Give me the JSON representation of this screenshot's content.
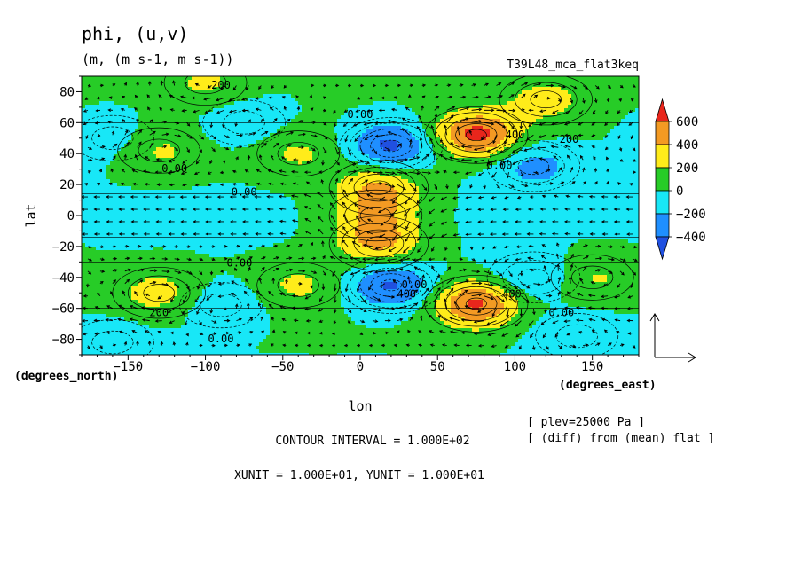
{
  "chart_data": {
    "type": "heatmap",
    "title": "phi, (u,v)",
    "units_line": "(m, (m s-1, m s-1))",
    "experiment": "T39L48_mca_flat3keq",
    "xlabel": "lon",
    "xunit_label": "(degrees_east)",
    "ylabel": "lat",
    "yunit_label": "(degrees_north)",
    "xlim": [
      -180,
      180
    ],
    "ylim": [
      -90,
      90
    ],
    "xticks": [
      -150,
      -100,
      -50,
      0,
      50,
      100,
      150
    ],
    "yticks": [
      80,
      60,
      40,
      20,
      0,
      -20,
      -40,
      -60,
      -80
    ],
    "colorbar": {
      "levels": [
        600,
        400,
        200,
        0,
        -200,
        -400
      ],
      "bands": [
        {
          "min": 600,
          "color": "#e8261c"
        },
        {
          "min": 400,
          "max": 600,
          "color": "#f39a23"
        },
        {
          "min": 200,
          "max": 400,
          "color": "#ffec1a"
        },
        {
          "min": 0,
          "max": 200,
          "color": "#27cc27"
        },
        {
          "min": -200,
          "max": 0,
          "color": "#18e7f7"
        },
        {
          "min": -400,
          "max": -200,
          "color": "#1f8fff"
        },
        {
          "max": -400,
          "color": "#2050e0"
        }
      ]
    },
    "field_features": [
      {
        "lon": 75,
        "lat": 52,
        "value": 650
      },
      {
        "lon": 75,
        "lat": -57,
        "value": 620
      },
      {
        "lon": 12,
        "lat": 18,
        "value": 420
      },
      {
        "lon": 12,
        "lat": -18,
        "value": 430
      },
      {
        "lon": 10,
        "lat": 0,
        "value": 280
      },
      {
        "lon": 20,
        "lat": 45,
        "value": -480
      },
      {
        "lon": 20,
        "lat": -45,
        "value": -460
      },
      {
        "lon": -130,
        "lat": -50,
        "value": 280
      },
      {
        "lon": -130,
        "lat": 42,
        "value": 240
      },
      {
        "lon": -40,
        "lat": 40,
        "value": 230
      },
      {
        "lon": -40,
        "lat": -45,
        "value": 230
      },
      {
        "lon": 150,
        "lat": -40,
        "value": 230
      },
      {
        "lon": -75,
        "lat": 60,
        "value": -180
      },
      {
        "lon": -160,
        "lat": 50,
        "value": -160
      },
      {
        "lon": 112,
        "lat": 32,
        "value": -280
      },
      {
        "lon": 112,
        "lat": -40,
        "value": -250
      },
      {
        "lon": -90,
        "lat": -58,
        "value": -200
      },
      {
        "lon": 140,
        "lat": -78,
        "value": -190
      },
      {
        "lon": -160,
        "lat": -82,
        "value": -160
      },
      {
        "lon": 120,
        "lat": 75,
        "value": 260
      },
      {
        "lon": -100,
        "lat": 86,
        "value": 230
      }
    ],
    "contour_labels": [
      {
        "text": "200",
        "lon": -90,
        "lat": 82
      },
      {
        "text": "0.00",
        "lon": 0,
        "lat": 63
      },
      {
        "text": "400",
        "lon": 100,
        "lat": 50
      },
      {
        "text": "200",
        "lon": 135,
        "lat": 47
      },
      {
        "text": "0.00",
        "lon": 90,
        "lat": 30
      },
      {
        "text": "0.00",
        "lon": -120,
        "lat": 28
      },
      {
        "text": "0.00",
        "lon": -75,
        "lat": 13
      },
      {
        "text": "0.00",
        "lon": -78,
        "lat": -33
      },
      {
        "text": "0.00",
        "lon": 35,
        "lat": -47
      },
      {
        "text": "400",
        "lon": 30,
        "lat": -53
      },
      {
        "text": "400",
        "lon": 98,
        "lat": -53
      },
      {
        "text": "200",
        "lon": -130,
        "lat": -65
      },
      {
        "text": "0.00",
        "lon": 130,
        "lat": -65
      },
      {
        "text": "0.00",
        "lon": -90,
        "lat": -82
      }
    ],
    "vector_reference": {
      "xunit_value": 10,
      "yunit_value": 10
    },
    "annotations": {
      "contour_interval": "CONTOUR INTERVAL = 1.000E+02",
      "vector_units": "XUNIT = 1.000E+01, YUNIT = 1.000E+01",
      "plev": "[ plev=25000 Pa ]",
      "diff": "[ (diff) from (mean) flat ]"
    }
  }
}
